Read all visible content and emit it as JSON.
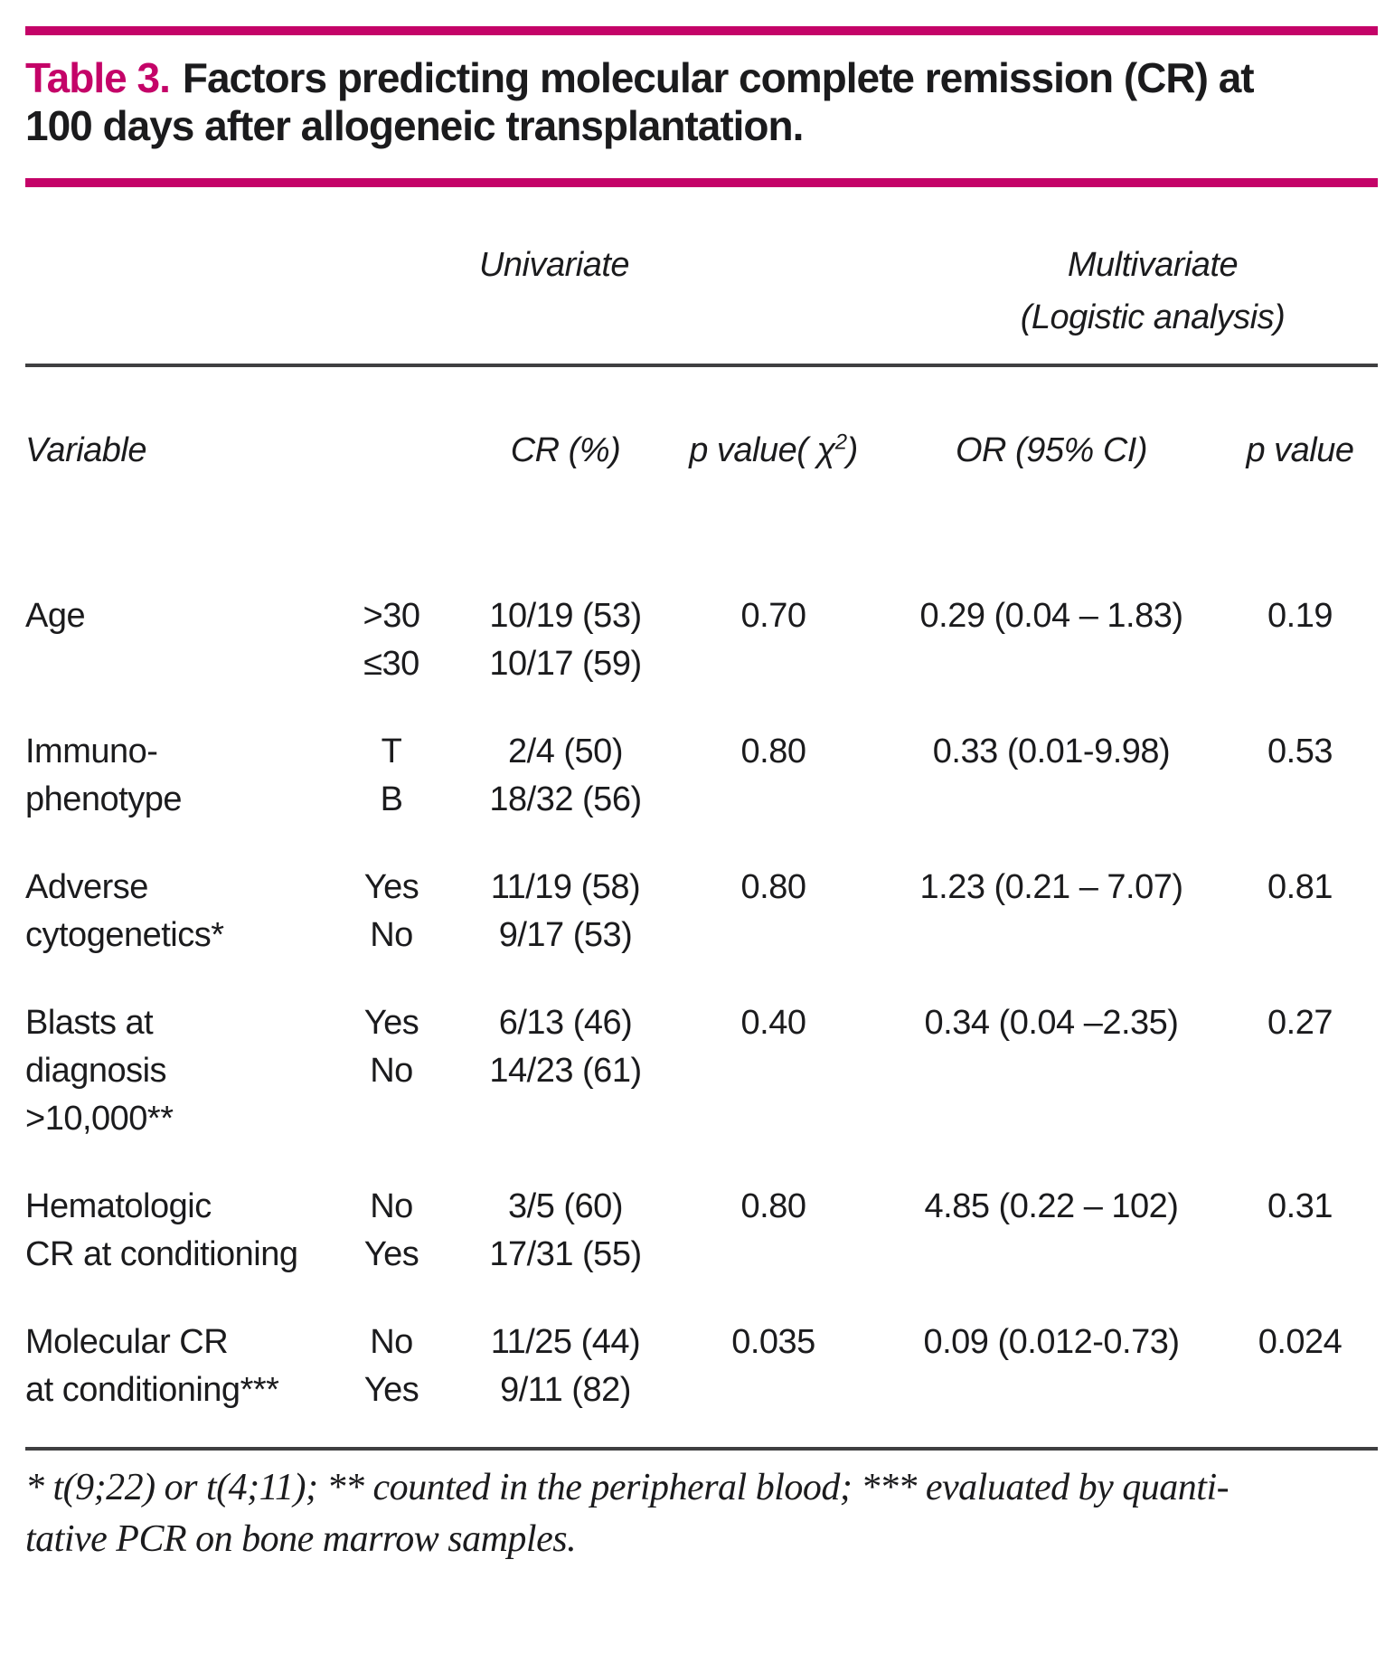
{
  "page": {
    "title": {
      "label": "Table 3.",
      "lines": [
        "Factors predicting molecular complete remission (CR) at",
        "100 days after allogeneic transplantation."
      ]
    },
    "group_headers": {
      "univariate": "Univariate",
      "multivariate": [
        "Multivariate",
        "(Logistic analysis)"
      ]
    },
    "column_headers": {
      "variable": "Variable",
      "cr": "CR (%)",
      "p_chi_prefix": "p value( ",
      "p_chi_symbol": "χ",
      "p_chi_sup": "2",
      "p_chi_suffix": ")",
      "or": "OR (95% CI)",
      "p": "p value"
    },
    "rows": [
      {
        "variable": [
          "Age"
        ],
        "levels": [
          ">30",
          "≤30"
        ],
        "cr": [
          "10/19 (53)",
          "10/17 (59)"
        ],
        "p_chi": "0.70",
        "or": "0.29 (0.04 – 1.83)",
        "p": "0.19"
      },
      {
        "variable": [
          "Immuno-",
          "phenotype"
        ],
        "levels": [
          "T",
          "B"
        ],
        "cr": [
          "2/4 (50)",
          "18/32 (56)"
        ],
        "p_chi": "0.80",
        "or": "0.33 (0.01-9.98)",
        "p": "0.53"
      },
      {
        "variable": [
          "Adverse",
          "cytogenetics*"
        ],
        "levels": [
          "Yes",
          "No"
        ],
        "cr": [
          "11/19 (58)",
          "9/17 (53)"
        ],
        "p_chi": "0.80",
        "or": "1.23 (0.21 – 7.07)",
        "p": "0.81"
      },
      {
        "variable": [
          "Blasts at",
          "diagnosis",
          ">10,000**"
        ],
        "levels": [
          "Yes",
          "No"
        ],
        "cr": [
          "6/13 (46)",
          "14/23 (61)"
        ],
        "p_chi": "0.40",
        "or": "0.34 (0.04 –2.35)",
        "p": "0.27"
      },
      {
        "variable": [
          "Hematologic",
          "CR at conditioning"
        ],
        "levels": [
          "No",
          "Yes"
        ],
        "cr": [
          "3/5 (60)",
          "17/31 (55)"
        ],
        "p_chi": "0.80",
        "or": "4.85 (0.22 – 102)",
        "p": "0.31"
      },
      {
        "variable": [
          "Molecular CR",
          "at conditioning***"
        ],
        "levels": [
          "No",
          "Yes"
        ],
        "cr": [
          "11/25 (44)",
          "9/11 (82)"
        ],
        "p_chi": "0.035",
        "or": "0.09 (0.012-0.73)",
        "p": "0.024"
      }
    ],
    "footnote_lines": [
      "* t(9;22) or t(4;11); ** counted in the peripheral blood; *** evaluated by quanti-",
      "tative PCR on bone marrow samples."
    ],
    "colors": {
      "accent": "#C40368",
      "text": "#1B1B1D",
      "rule_dark": "#3F3F41"
    }
  }
}
